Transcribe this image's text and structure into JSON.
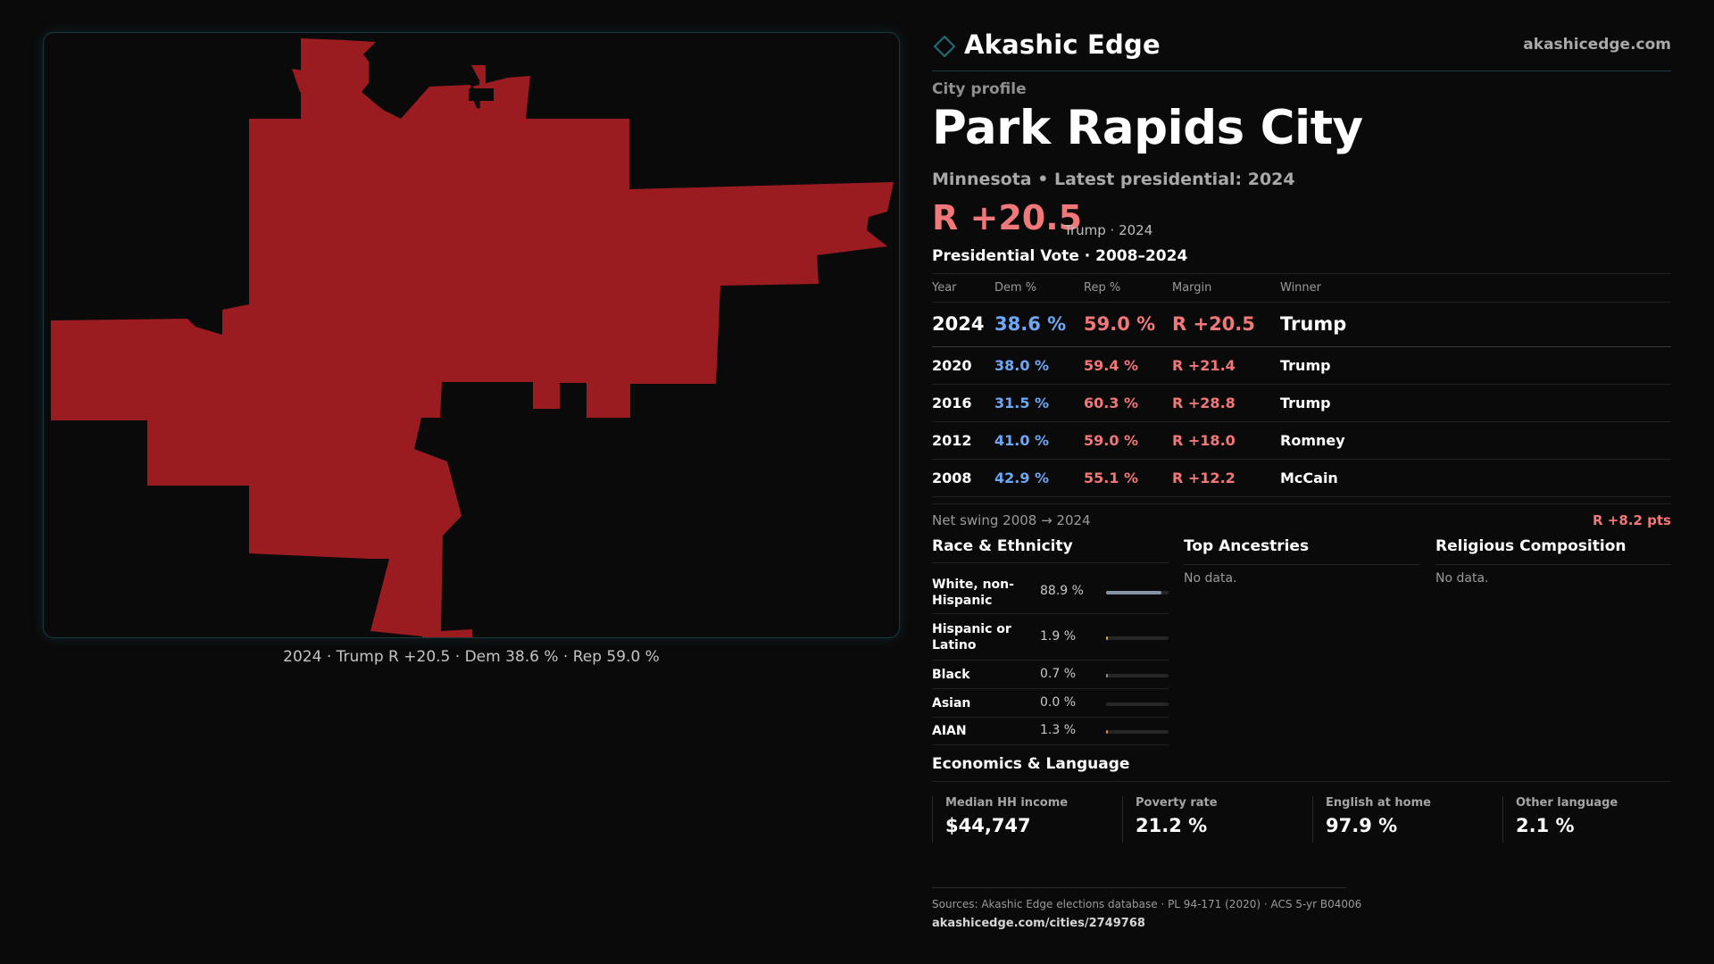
{
  "map": {
    "caption": "2024 · Trump R +20.5 · Dem 38.6 % · Rep 59.0 %",
    "fill_color": "#9b1c20"
  },
  "brand": {
    "name": "Akashic Edge",
    "url": "akashicedge.com",
    "icon": "diamond-icon",
    "accent": "#1f6f78"
  },
  "profile": {
    "kicker": "City profile",
    "title": "Park Rapids City",
    "subtitle": "Minnesota • Latest presidential: 2024",
    "margin": "R +20.5",
    "margin_note": "Trump · 2024"
  },
  "votes": {
    "title": "Presidential Vote · 2008–2024",
    "headers": [
      "Year",
      "Dem %",
      "Rep %",
      "Margin",
      "Winner"
    ],
    "rows": [
      {
        "year": "2024",
        "dem": "38.6 %",
        "rep": "59.0 %",
        "margin": "R +20.5",
        "winner": "Trump"
      },
      {
        "year": "2020",
        "dem": "38.0 %",
        "rep": "59.4 %",
        "margin": "R +21.4",
        "winner": "Trump"
      },
      {
        "year": "2016",
        "dem": "31.5 %",
        "rep": "60.3 %",
        "margin": "R +28.8",
        "winner": "Trump"
      },
      {
        "year": "2012",
        "dem": "41.0 %",
        "rep": "59.0 %",
        "margin": "R +18.0",
        "winner": "Romney"
      },
      {
        "year": "2008",
        "dem": "42.9 %",
        "rep": "55.1 %",
        "margin": "R +12.2",
        "winner": "McCain"
      }
    ],
    "swing_label": "Net swing 2008 → 2024",
    "swing_value": "R +8.2 pts",
    "dem_color": "#6ea8f5",
    "rep_color": "#f07878"
  },
  "race": {
    "title": "Race & Ethnicity",
    "rows": [
      {
        "label": "White, non-Hispanic",
        "pct": "88.9 %",
        "value": 88.9,
        "color": "#8a93a3"
      },
      {
        "label": "Hispanic or Latino",
        "pct": "1.9 %",
        "value": 1.9,
        "color": "#e0a526"
      },
      {
        "label": "Black",
        "pct": "0.7 %",
        "value": 0.7,
        "color": "#8a93a3"
      },
      {
        "label": "Asian",
        "pct": "0.0 %",
        "value": 0.0,
        "color": "#8a93a3"
      },
      {
        "label": "AIAN",
        "pct": "1.3 %",
        "value": 1.3,
        "color": "#e08a3a"
      }
    ]
  },
  "ancestries": {
    "title": "Top Ancestries",
    "empty": "No data."
  },
  "religion": {
    "title": "Religious Composition",
    "empty": "No data."
  },
  "economics": {
    "title": "Economics & Language",
    "stats": [
      {
        "label": "Median HH income",
        "value": "$44,747"
      },
      {
        "label": "Poverty rate",
        "value": "21.2 %"
      },
      {
        "label": "English at home",
        "value": "97.9 %"
      },
      {
        "label": "Other language",
        "value": "2.1 %"
      }
    ]
  },
  "footer": {
    "sources": "Sources: Akashic Edge elections database · PL 94-171 (2020) · ACS 5-yr B04006",
    "permalink": "akashicedge.com/cities/2749768"
  }
}
